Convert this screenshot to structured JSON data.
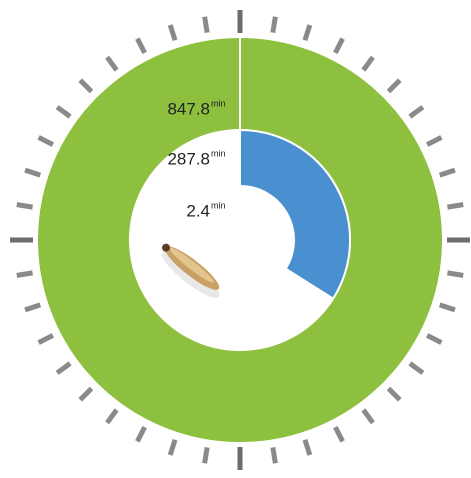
{
  "chart_data": {
    "type": "radial-bar",
    "values": [
      847.8,
      287.8,
      2.4
    ],
    "colors": [
      "#8dc03f",
      "#4a8fcf",
      "#cc4fa8"
    ],
    "unit": "min"
  }
}
